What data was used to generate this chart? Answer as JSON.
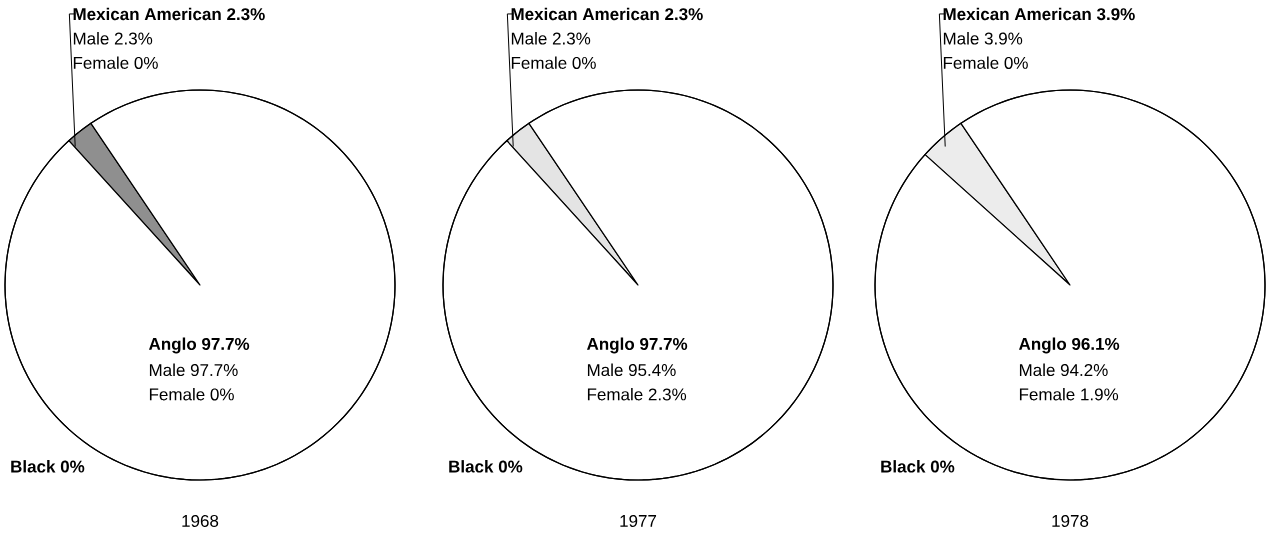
{
  "chart_data": [
    {
      "type": "pie",
      "title": "1968",
      "categories": [
        "Mexican American",
        "Anglo",
        "Black"
      ],
      "values": [
        2.3,
        97.7,
        0
      ],
      "colors": [
        "#8f8f8f",
        "#ffffff",
        "#ffffff"
      ],
      "value_labels": [
        "2.3%",
        "97.7%",
        "0%"
      ],
      "annotations": [
        "Male 2.3%",
        "Female 0%",
        "Male 97.7%",
        "Female 0%"
      ]
    },
    {
      "type": "pie",
      "title": "1977",
      "categories": [
        "Mexican American",
        "Anglo",
        "Black"
      ],
      "values": [
        2.3,
        97.7,
        0
      ],
      "colors": [
        "#e4e4e4",
        "#ffffff",
        "#ffffff"
      ],
      "value_labels": [
        "2.3%",
        "97.7%",
        "0%"
      ],
      "annotations": [
        "Male 2.3%",
        "Female 0%",
        "Male 95.4%",
        "Female 2.3%"
      ]
    },
    {
      "type": "pie",
      "title": "1978",
      "categories": [
        "Mexican American",
        "Anglo",
        "Black"
      ],
      "values": [
        3.9,
        96.1,
        0
      ],
      "colors": [
        "#ececec",
        "#ffffff",
        "#ffffff"
      ],
      "value_labels": [
        "3.9%",
        "96.1%",
        "0%"
      ],
      "annotations": [
        "Male 3.9%",
        "Female 0%",
        "Male 94.2%",
        "Female 1.9%"
      ]
    }
  ]
}
